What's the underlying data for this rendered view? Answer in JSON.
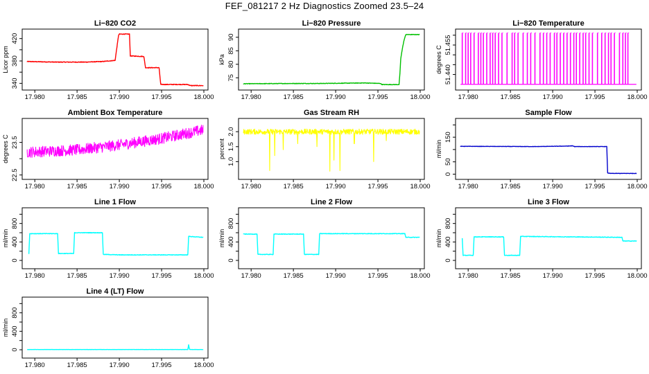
{
  "title": "FEF_081217  2 Hz Diagnostics Zoomed 23.5–24",
  "chart_data": [
    {
      "type": "line",
      "title": "Li−820 CO2",
      "ylabel": "Licor ppm",
      "color": "#ff0000",
      "xlim": [
        17.979,
        18.0
      ],
      "ylim": [
        333,
        432
      ],
      "xticks": [
        17.98,
        17.985,
        17.99,
        17.995,
        18.0
      ],
      "xticklabels": [
        "17.980",
        "17.985",
        "17.990",
        "17.995",
        "18.000"
      ],
      "yticks": [
        340,
        360,
        380,
        400,
        420
      ],
      "yticklabels": [
        "340",
        "",
        "380",
        "",
        "420"
      ],
      "noise": 0.6,
      "x": [
        17.9791,
        17.9825,
        17.986,
        17.988,
        17.9895,
        17.9899,
        17.99,
        17.9912,
        17.9913,
        17.9929,
        17.9931,
        17.9947,
        17.9949,
        17.9981,
        17.9984,
        17.9999
      ],
      "y": [
        379,
        378,
        378,
        379,
        381,
        425,
        428,
        428,
        389,
        388,
        368,
        368,
        338,
        338,
        336,
        336
      ]
    },
    {
      "type": "line",
      "title": "Li−820 Pressure",
      "ylabel": "kPa",
      "color": "#00c000",
      "xlim": [
        17.979,
        18.0
      ],
      "ylim": [
        71.5,
        92
      ],
      "xticks": [
        17.98,
        17.985,
        17.99,
        17.995,
        18.0
      ],
      "xticklabels": [
        "17.980",
        "17.985",
        "17.990",
        "17.995",
        "18.000"
      ],
      "yticks": [
        75,
        80,
        85,
        90
      ],
      "yticklabels": [
        "75",
        "80",
        "85",
        "90"
      ],
      "noise": 0.1,
      "x": [
        17.9791,
        17.985,
        17.988,
        17.9935,
        17.9953,
        17.9955,
        17.9975,
        17.9976,
        17.9977,
        17.9979,
        17.9981,
        17.9983,
        17.9999
      ],
      "y": [
        72.8,
        72.9,
        72.9,
        73.1,
        72.9,
        72.5,
        72.5,
        76.5,
        82,
        86,
        89,
        91,
        91
      ]
    },
    {
      "type": "spikes",
      "title": "Li−820 Temperature",
      "ylabel": "degrees C",
      "color": "#ff00ff",
      "xlim": [
        17.979,
        18.0
      ],
      "ylim": [
        51.4335,
        51.4617
      ],
      "xticks": [
        17.98,
        17.985,
        17.99,
        17.995,
        18.0
      ],
      "xticklabels": [
        "17.980",
        "17.985",
        "17.990",
        "17.995",
        "18.000"
      ],
      "yticks": [
        51.44,
        51.445,
        51.45,
        51.455,
        51.46
      ],
      "yticklabels": [
        "51.440",
        "",
        "",
        "51.455",
        ""
      ],
      "low": 51.435,
      "high": 51.4612,
      "spike_x": [
        17.9793,
        17.9797,
        17.98,
        17.9803,
        17.9807,
        17.9812,
        17.9815,
        17.9818,
        17.9822,
        17.9826,
        17.9829,
        17.9832,
        17.9836,
        17.984,
        17.9846,
        17.9852,
        17.9855,
        17.9859,
        17.9865,
        17.987,
        17.9874,
        17.9879,
        17.9885,
        17.9889,
        17.9893,
        17.9897,
        17.9902,
        17.9905,
        17.9909,
        17.9913,
        17.9917,
        17.9921,
        17.9925,
        17.9928,
        17.9932,
        17.9936,
        17.9939,
        17.9943,
        17.9947,
        17.9953,
        17.9958,
        17.9962,
        17.9966,
        17.9969,
        17.9973,
        17.9979,
        17.9983,
        17.9986,
        17.9989
      ]
    },
    {
      "type": "line",
      "title": "Ambient Box Temperature",
      "ylabel": "degrees C",
      "color": "#ff00ff",
      "xlim": [
        17.979,
        18.0
      ],
      "ylim": [
        22.45,
        24.15
      ],
      "xticks": [
        17.98,
        17.985,
        17.99,
        17.995,
        18.0
      ],
      "xticklabels": [
        "17.980",
        "17.985",
        "17.990",
        "17.995",
        "18.000"
      ],
      "yticks": [
        22.5,
        23.0,
        23.5
      ],
      "yticklabels": [
        "22.5",
        "",
        "23.5"
      ],
      "noise": 0.17,
      "x": [
        17.9791,
        17.985,
        17.99,
        17.995,
        17.9999
      ],
      "y": [
        23.2,
        23.27,
        23.42,
        23.62,
        23.88
      ]
    },
    {
      "type": "line",
      "title": "Gas Stream RH",
      "ylabel": "percent",
      "color": "#ffff00",
      "xlim": [
        17.979,
        18.0
      ],
      "ylim": [
        0.5,
        2.35
      ],
      "xticks": [
        17.98,
        17.985,
        17.99,
        17.995,
        18.0
      ],
      "xticklabels": [
        "17.980",
        "17.985",
        "17.990",
        "17.995",
        "18.000"
      ],
      "yticks": [
        1.0,
        1.5,
        2.0
      ],
      "yticklabels": [
        "1.0",
        "1.5",
        "2.0"
      ],
      "noise": 0.09,
      "x": [
        17.9791,
        17.9999
      ],
      "y": [
        2.0,
        2.0
      ],
      "dips": [
        [
          17.9822,
          0.7
        ],
        [
          17.9828,
          1.2
        ],
        [
          17.9838,
          1.4
        ],
        [
          17.9855,
          1.6
        ],
        [
          17.9878,
          1.5
        ],
        [
          17.9893,
          0.68
        ],
        [
          17.9898,
          1.05
        ],
        [
          17.9905,
          0.7
        ],
        [
          17.9922,
          1.6
        ],
        [
          17.9945,
          1.0
        ],
        [
          17.996,
          1.7
        ]
      ]
    },
    {
      "type": "line",
      "title": "Sample Flow",
      "ylabel": "ml/min",
      "color": "#0000cc",
      "xlim": [
        17.979,
        18.0
      ],
      "ylim": [
        -10,
        215
      ],
      "xticks": [
        17.98,
        17.985,
        17.99,
        17.995,
        18.0
      ],
      "xticklabels": [
        "17.980",
        "17.985",
        "17.990",
        "17.995",
        "18.000"
      ],
      "yticks": [
        0,
        50,
        100,
        150,
        200
      ],
      "yticklabels": [
        "0",
        "50",
        "",
        "150",
        ""
      ],
      "noise": 0.7,
      "x": [
        17.9791,
        17.988,
        17.9918,
        17.9923,
        17.9926,
        17.9964,
        17.9965,
        17.9968,
        17.9999
      ],
      "y": [
        113,
        112,
        114,
        115,
        112,
        112,
        5,
        3,
        3
      ]
    },
    {
      "type": "line",
      "title": "Line 1 Flow",
      "ylabel": "ml/min",
      "color": "#00ffff",
      "xlim": [
        17.979,
        18.0
      ],
      "ylim": [
        -120,
        1080
      ],
      "xticks": [
        17.98,
        17.985,
        17.99,
        17.995,
        18.0
      ],
      "xticklabels": [
        "17.980",
        "17.985",
        "17.990",
        "17.995",
        "18.000"
      ],
      "yticks": [
        0,
        200,
        400,
        600,
        800,
        1000
      ],
      "yticklabels": [
        "0",
        "",
        "400",
        "",
        "800",
        ""
      ],
      "noise": 6,
      "x": [
        17.9793,
        17.9794,
        17.9827,
        17.9828,
        17.9846,
        17.9847,
        17.988,
        17.9881,
        17.99,
        17.9981,
        17.9982,
        17.9999
      ],
      "y": [
        150,
        580,
        580,
        150,
        150,
        600,
        600,
        130,
        120,
        120,
        520,
        500
      ]
    },
    {
      "type": "line",
      "title": "Line 2 Flow",
      "ylabel": "ml/min",
      "color": "#00ffff",
      "xlim": [
        17.979,
        18.0
      ],
      "ylim": [
        -120,
        1080
      ],
      "xticks": [
        17.98,
        17.985,
        17.99,
        17.995,
        18.0
      ],
      "xticklabels": [
        "17.980",
        "17.985",
        "17.990",
        "17.995",
        "18.000"
      ],
      "yticks": [
        0,
        200,
        400,
        600,
        800,
        1000
      ],
      "yticklabels": [
        "0",
        "",
        "400",
        "",
        "800",
        ""
      ],
      "noise": 6,
      "x": [
        17.9791,
        17.9807,
        17.9808,
        17.9826,
        17.9827,
        17.9862,
        17.9863,
        17.988,
        17.9881,
        17.9982,
        17.9983,
        17.9999
      ],
      "y": [
        570,
        570,
        130,
        130,
        570,
        570,
        130,
        130,
        580,
        580,
        500,
        500
      ]
    },
    {
      "type": "line",
      "title": "Line 3 Flow",
      "ylabel": "ml/min",
      "color": "#00ffff",
      "xlim": [
        17.979,
        18.0
      ],
      "ylim": [
        -120,
        1080
      ],
      "xticks": [
        17.98,
        17.985,
        17.99,
        17.995,
        18.0
      ],
      "xticklabels": [
        "17.980",
        "17.985",
        "17.990",
        "17.995",
        "18.000"
      ],
      "yticks": [
        0,
        200,
        400,
        600,
        800,
        1000
      ],
      "yticklabels": [
        "0",
        "",
        "400",
        "",
        "800",
        ""
      ],
      "noise": 6,
      "x": [
        17.9793,
        17.9794,
        17.9806,
        17.9807,
        17.9842,
        17.9843,
        17.9861,
        17.9862,
        17.9982,
        17.9983,
        17.9999
      ],
      "y": [
        480,
        110,
        110,
        510,
        510,
        110,
        110,
        520,
        500,
        420,
        420
      ]
    },
    {
      "type": "line",
      "title": "Line 4 (LT) Flow",
      "ylabel": "ml/min",
      "color": "#00ffff",
      "xlim": [
        17.979,
        18.0
      ],
      "ylim": [
        -120,
        1080
      ],
      "xticks": [
        17.98,
        17.985,
        17.99,
        17.995,
        18.0
      ],
      "xticklabels": [
        "17.980",
        "17.985",
        "17.990",
        "17.995",
        "18.000"
      ],
      "yticks": [
        0,
        200,
        400,
        600,
        800,
        1000
      ],
      "yticklabels": [
        "0",
        "",
        "400",
        "",
        "800",
        ""
      ],
      "noise": 2,
      "x": [
        17.9791,
        17.9981,
        17.9982,
        17.9983,
        17.9984,
        17.9999
      ],
      "y": [
        5,
        5,
        110,
        10,
        5,
        5
      ]
    }
  ]
}
